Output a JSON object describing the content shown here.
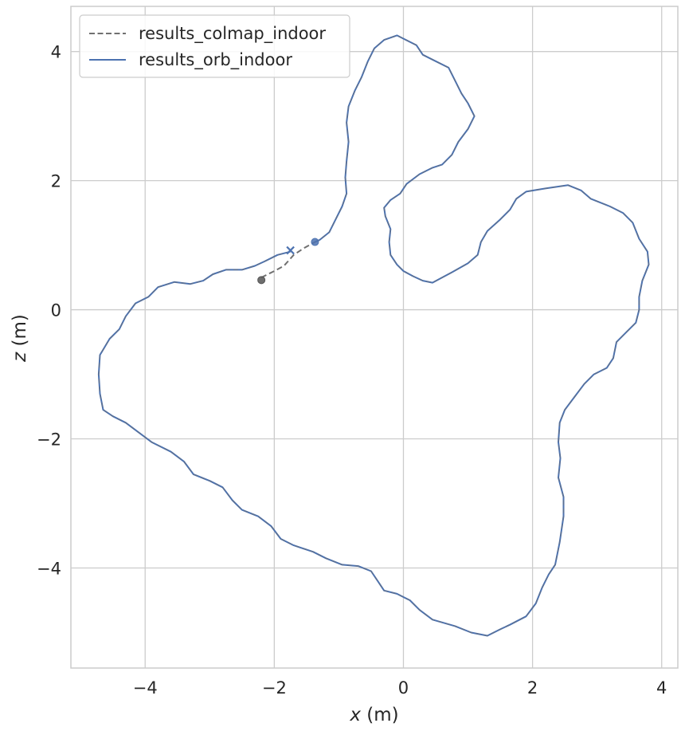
{
  "chart_data": {
    "type": "line",
    "xlabel_var": "x",
    "xlabel_unit": " (m)",
    "ylabel_var": "z",
    "ylabel_unit": " (m)",
    "xlim": [
      -5.15,
      4.25
    ],
    "ylim": [
      -5.55,
      4.7
    ],
    "x_ticks": [
      -4,
      -2,
      0,
      2,
      4
    ],
    "y_ticks": [
      -4,
      -2,
      0,
      2,
      4
    ],
    "x_tick_labels": [
      "−4",
      "−2",
      "0",
      "2",
      "4"
    ],
    "y_tick_labels": [
      "−4",
      "−2",
      "0",
      "2",
      "4"
    ],
    "grid": true,
    "legend_position": "top-left",
    "colors": {
      "orb": "#4c72b0",
      "colmap": "#707070",
      "grid": "#cccccc",
      "frame": "#cccccc"
    },
    "series": [
      {
        "name": "results_colmap_indoor",
        "style": "dashed",
        "points": [
          [
            -2.2,
            0.5
          ],
          [
            -2.0,
            0.6
          ],
          [
            -1.85,
            0.68
          ],
          [
            -1.7,
            0.85
          ],
          [
            -1.55,
            0.95
          ],
          [
            -1.37,
            1.05
          ]
        ]
      },
      {
        "name": "results_orb_indoor",
        "style": "solid",
        "points": [
          [
            -1.75,
            0.9
          ],
          [
            -1.95,
            0.85
          ],
          [
            -2.15,
            0.75
          ],
          [
            -2.3,
            0.68
          ],
          [
            -2.5,
            0.62
          ],
          [
            -2.75,
            0.62
          ],
          [
            -2.95,
            0.55
          ],
          [
            -3.1,
            0.45
          ],
          [
            -3.3,
            0.4
          ],
          [
            -3.55,
            0.43
          ],
          [
            -3.8,
            0.35
          ],
          [
            -3.95,
            0.2
          ],
          [
            -4.15,
            0.1
          ],
          [
            -4.3,
            -0.1
          ],
          [
            -4.4,
            -0.3
          ],
          [
            -4.55,
            -0.45
          ],
          [
            -4.7,
            -0.7
          ],
          [
            -4.72,
            -1.0
          ],
          [
            -4.7,
            -1.3
          ],
          [
            -4.65,
            -1.55
          ],
          [
            -4.5,
            -1.65
          ],
          [
            -4.3,
            -1.75
          ],
          [
            -4.1,
            -1.9
          ],
          [
            -3.9,
            -2.05
          ],
          [
            -3.6,
            -2.2
          ],
          [
            -3.4,
            -2.35
          ],
          [
            -3.25,
            -2.55
          ],
          [
            -3.0,
            -2.65
          ],
          [
            -2.8,
            -2.75
          ],
          [
            -2.65,
            -2.95
          ],
          [
            -2.5,
            -3.1
          ],
          [
            -2.25,
            -3.2
          ],
          [
            -2.05,
            -3.35
          ],
          [
            -1.9,
            -3.55
          ],
          [
            -1.7,
            -3.65
          ],
          [
            -1.4,
            -3.75
          ],
          [
            -1.2,
            -3.85
          ],
          [
            -0.95,
            -3.95
          ],
          [
            -0.7,
            -3.97
          ],
          [
            -0.5,
            -4.05
          ],
          [
            -0.4,
            -4.2
          ],
          [
            -0.3,
            -4.35
          ],
          [
            -0.1,
            -4.4
          ],
          [
            0.1,
            -4.5
          ],
          [
            0.25,
            -4.65
          ],
          [
            0.45,
            -4.8
          ],
          [
            0.8,
            -4.9
          ],
          [
            1.05,
            -5.0
          ],
          [
            1.3,
            -5.05
          ],
          [
            1.5,
            -4.95
          ],
          [
            1.65,
            -4.88
          ],
          [
            1.9,
            -4.75
          ],
          [
            2.05,
            -4.55
          ],
          [
            2.15,
            -4.3
          ],
          [
            2.25,
            -4.1
          ],
          [
            2.35,
            -3.95
          ],
          [
            2.42,
            -3.6
          ],
          [
            2.48,
            -3.2
          ],
          [
            2.48,
            -2.9
          ],
          [
            2.4,
            -2.6
          ],
          [
            2.43,
            -2.3
          ],
          [
            2.4,
            -2.05
          ],
          [
            2.42,
            -1.75
          ],
          [
            2.5,
            -1.55
          ],
          [
            2.65,
            -1.35
          ],
          [
            2.8,
            -1.15
          ],
          [
            2.95,
            -1.0
          ],
          [
            3.15,
            -0.9
          ],
          [
            3.25,
            -0.75
          ],
          [
            3.3,
            -0.5
          ],
          [
            3.45,
            -0.35
          ],
          [
            3.6,
            -0.2
          ],
          [
            3.65,
            0.0
          ],
          [
            3.65,
            0.2
          ],
          [
            3.7,
            0.45
          ],
          [
            3.8,
            0.7
          ],
          [
            3.78,
            0.9
          ],
          [
            3.65,
            1.1
          ],
          [
            3.55,
            1.35
          ],
          [
            3.4,
            1.5
          ],
          [
            3.2,
            1.6
          ],
          [
            2.9,
            1.72
          ],
          [
            2.75,
            1.85
          ],
          [
            2.55,
            1.93
          ],
          [
            2.2,
            1.88
          ],
          [
            1.9,
            1.83
          ],
          [
            1.75,
            1.72
          ],
          [
            1.65,
            1.55
          ],
          [
            1.5,
            1.4
          ],
          [
            1.3,
            1.22
          ],
          [
            1.2,
            1.05
          ],
          [
            1.15,
            0.85
          ],
          [
            1.0,
            0.72
          ],
          [
            0.75,
            0.58
          ],
          [
            0.6,
            0.5
          ],
          [
            0.45,
            0.42
          ],
          [
            0.3,
            0.45
          ],
          [
            0.15,
            0.52
          ],
          [
            0.0,
            0.6
          ],
          [
            -0.1,
            0.7
          ],
          [
            -0.2,
            0.85
          ],
          [
            -0.22,
            1.05
          ],
          [
            -0.2,
            1.25
          ],
          [
            -0.28,
            1.45
          ],
          [
            -0.3,
            1.58
          ],
          [
            -0.2,
            1.7
          ],
          [
            -0.05,
            1.8
          ],
          [
            0.05,
            1.95
          ],
          [
            0.25,
            2.1
          ],
          [
            0.45,
            2.2
          ],
          [
            0.6,
            2.25
          ],
          [
            0.75,
            2.4
          ],
          [
            0.85,
            2.6
          ],
          [
            1.0,
            2.8
          ],
          [
            1.1,
            3.0
          ],
          [
            1.0,
            3.2
          ],
          [
            0.9,
            3.35
          ],
          [
            0.8,
            3.55
          ],
          [
            0.7,
            3.75
          ],
          [
            0.5,
            3.85
          ],
          [
            0.3,
            3.95
          ],
          [
            0.2,
            4.1
          ],
          [
            0.0,
            4.2
          ],
          [
            -0.1,
            4.25
          ],
          [
            -0.3,
            4.18
          ],
          [
            -0.45,
            4.05
          ],
          [
            -0.55,
            3.85
          ],
          [
            -0.65,
            3.6
          ],
          [
            -0.75,
            3.4
          ],
          [
            -0.85,
            3.15
          ],
          [
            -0.88,
            2.9
          ],
          [
            -0.85,
            2.6
          ],
          [
            -0.88,
            2.3
          ],
          [
            -0.9,
            2.05
          ],
          [
            -0.88,
            1.8
          ],
          [
            -0.95,
            1.6
          ],
          [
            -1.05,
            1.4
          ],
          [
            -1.15,
            1.2
          ],
          [
            -1.3,
            1.08
          ],
          [
            -1.37,
            1.05
          ]
        ]
      }
    ],
    "markers": [
      {
        "series": "results_colmap_indoor",
        "kind": "circle",
        "x": -2.2,
        "y": 0.46
      },
      {
        "series": "results_orb_indoor",
        "kind": "cross",
        "x": -1.75,
        "y": 0.92
      },
      {
        "series": "results_orb_indoor",
        "kind": "circle",
        "x": -1.37,
        "y": 1.05
      }
    ]
  }
}
